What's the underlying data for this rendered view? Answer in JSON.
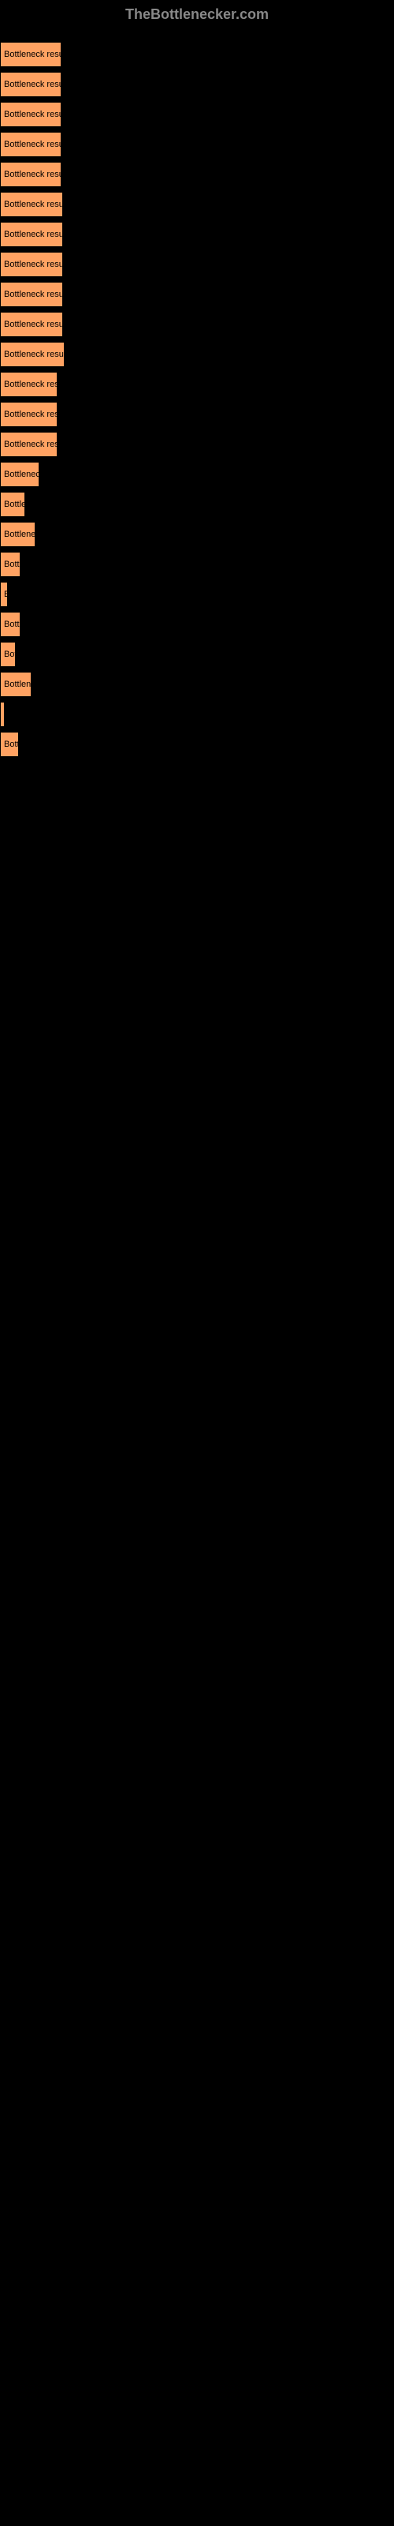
{
  "header": {
    "title": "TheBottlenecker.com"
  },
  "chart": {
    "type": "bar",
    "bar_color": "#ffa262",
    "background_color": "#000000",
    "text_color": "#000000",
    "header_color": "#888888",
    "bars": [
      {
        "label": "Bottleneck result",
        "width": 78
      },
      {
        "label": "Bottleneck result",
        "width": 78
      },
      {
        "label": "Bottleneck result",
        "width": 78
      },
      {
        "label": "Bottleneck result",
        "width": 78
      },
      {
        "label": "Bottleneck result",
        "width": 78
      },
      {
        "label": "Bottleneck result",
        "width": 80
      },
      {
        "label": "Bottleneck result",
        "width": 80
      },
      {
        "label": "Bottleneck result",
        "width": 80
      },
      {
        "label": "Bottleneck result",
        "width": 80
      },
      {
        "label": "Bottleneck result",
        "width": 80
      },
      {
        "label": "Bottleneck result",
        "width": 82
      },
      {
        "label": "Bottleneck resu",
        "width": 73
      },
      {
        "label": "Bottleneck resu",
        "width": 73
      },
      {
        "label": "Bottleneck resu",
        "width": 73
      },
      {
        "label": "Bottleneck",
        "width": 50
      },
      {
        "label": "Bottler",
        "width": 32
      },
      {
        "label": "Bottlenec",
        "width": 45
      },
      {
        "label": "Bottl",
        "width": 26
      },
      {
        "label": "B",
        "width": 10
      },
      {
        "label": "Bottl",
        "width": 26
      },
      {
        "label": "Bot",
        "width": 20
      },
      {
        "label": "Bottlene",
        "width": 40
      },
      {
        "label": "",
        "width": 4
      },
      {
        "label": "Bott",
        "width": 24
      }
    ]
  }
}
